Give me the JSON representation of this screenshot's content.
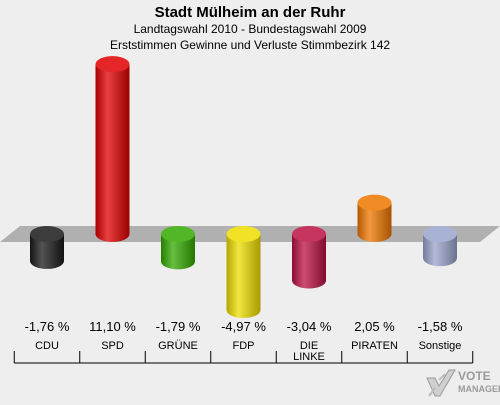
{
  "header": {
    "title": "Stadt Mülheim an der Ruhr",
    "subtitle1": "Landtagswahl 2010 - Bundestagswahl 2009",
    "subtitle2": "Erststimmen Gewinne und Verluste Stimmbezirk 142"
  },
  "chart_data": {
    "type": "bar",
    "categories": [
      "CDU",
      "SPD",
      "GRÜNE",
      "FDP",
      "DIE LINKE",
      "PIRATEN",
      "Sonstige"
    ],
    "values": [
      -1.76,
      11.1,
      -1.79,
      -4.97,
      -3.04,
      2.05,
      -1.58
    ],
    "value_labels": [
      "-1,76 %",
      "11,10 %",
      "-1,79 %",
      "-4,97 %",
      "-3,04 %",
      "2,05 %",
      "-1,58 %"
    ],
    "colors": [
      "#1a1a1a",
      "#e00000",
      "#33aa00",
      "#eedd00",
      "#bb1144",
      "#ee7700",
      "#99a4cc"
    ],
    "ylim": [
      -5.5,
      12
    ]
  },
  "logo": {
    "line1": "VOTE",
    "line2": "MANAGER"
  }
}
